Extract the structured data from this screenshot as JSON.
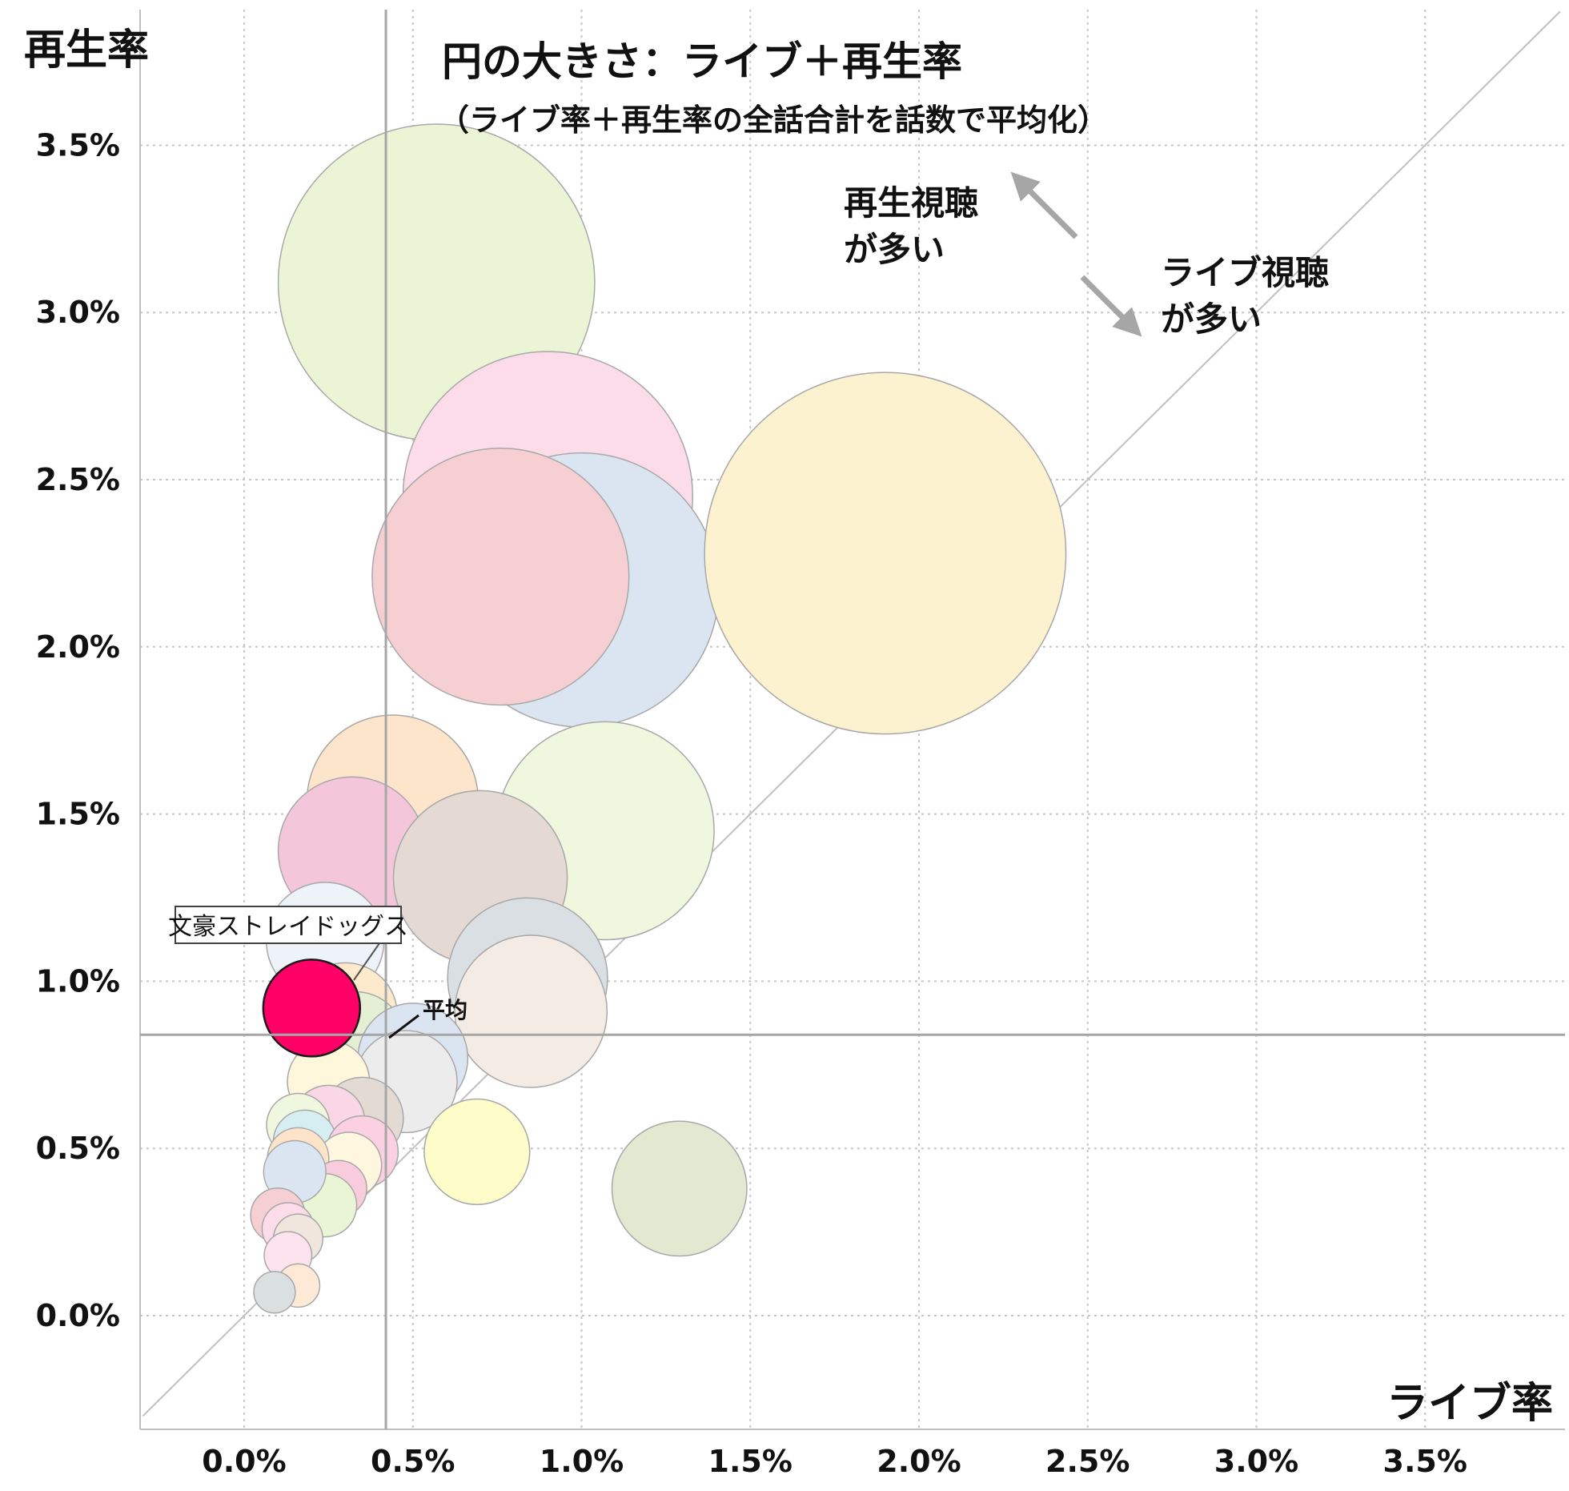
{
  "chart_data": {
    "type": "scatter",
    "title": "円の大きさ：ライブ＋再生率",
    "subtitle": "（ライブ率＋再生率の全話合計を話数で平均化）",
    "xlabel": "ライブ率",
    "ylabel": "再生率",
    "xlim": [
      -0.3,
      3.9
    ],
    "ylim": [
      -0.35,
      3.9
    ],
    "x_ticks": [
      0.0,
      0.5,
      1.0,
      1.5,
      2.0,
      2.5,
      3.0,
      3.5
    ],
    "y_ticks": [
      0.0,
      0.5,
      1.0,
      1.5,
      2.0,
      2.5,
      3.0,
      3.5
    ],
    "x_tick_labels": [
      "0.0%",
      "0.5%",
      "1.0%",
      "1.5%",
      "2.0%",
      "2.5%",
      "3.0%",
      "3.5%"
    ],
    "y_tick_labels": [
      "0.0%",
      "0.5%",
      "1.0%",
      "1.5%",
      "2.0%",
      "2.5%",
      "3.0%",
      "3.5%"
    ],
    "grid": true,
    "average": {
      "x": 0.42,
      "y": 0.84,
      "label": "平均"
    },
    "reference_line": "y = x",
    "annotations": {
      "upper": [
        "再生視聴",
        "が多い"
      ],
      "lower": [
        "ライブ視聴",
        "が多い"
      ]
    },
    "highlight": {
      "label": "文豪ストレイドッグス",
      "x": 0.2,
      "y": 0.92,
      "size": 1.12,
      "color": "#ff0066"
    },
    "points": [
      {
        "x": 0.57,
        "y": 3.09,
        "size": 3.66,
        "color": "#ebf5d5"
      },
      {
        "x": 0.9,
        "y": 2.45,
        "size": 3.35,
        "color": "#fcdce8"
      },
      {
        "x": 1.0,
        "y": 2.17,
        "size": 3.17,
        "color": "#dbe5f1"
      },
      {
        "x": 0.76,
        "y": 2.21,
        "size": 2.97,
        "color": "#f6cfd3"
      },
      {
        "x": 1.9,
        "y": 2.28,
        "size": 4.18,
        "color": "#fcf2cf"
      },
      {
        "x": 0.44,
        "y": 1.54,
        "size": 1.98,
        "color": "#fde5cb"
      },
      {
        "x": 1.07,
        "y": 1.45,
        "size": 2.52,
        "color": "#eff7df"
      },
      {
        "x": 0.32,
        "y": 1.39,
        "size": 1.71,
        "color": "#f4c6da"
      },
      {
        "x": 0.7,
        "y": 1.31,
        "size": 2.01,
        "color": "#e4d9d3"
      },
      {
        "x": 0.84,
        "y": 1.01,
        "size": 1.85,
        "color": "#d9dfe3"
      },
      {
        "x": 0.85,
        "y": 0.91,
        "size": 1.76,
        "color": "#f4ebe4"
      },
      {
        "x": 0.24,
        "y": 1.12,
        "size": 1.36,
        "color": "#eef2f9"
      },
      {
        "x": 0.3,
        "y": 0.9,
        "size": 1.2,
        "color": "#fde9cb"
      },
      {
        "x": 0.33,
        "y": 0.82,
        "size": 1.15,
        "color": "#e5efd3"
      },
      {
        "x": 0.5,
        "y": 0.77,
        "size": 1.27,
        "color": "#dbe5f1"
      },
      {
        "x": 0.48,
        "y": 0.7,
        "size": 1.18,
        "color": "#ececec"
      },
      {
        "x": 0.25,
        "y": 0.7,
        "size": 0.95,
        "color": "#fff7db"
      },
      {
        "x": 0.35,
        "y": 0.59,
        "size": 0.95,
        "color": "#e4dad4"
      },
      {
        "x": 0.25,
        "y": 0.58,
        "size": 0.84,
        "color": "#f9d7e4"
      },
      {
        "x": 0.16,
        "y": 0.57,
        "size": 0.73,
        "color": "#eff7df"
      },
      {
        "x": 0.18,
        "y": 0.52,
        "size": 0.73,
        "color": "#d6eef2"
      },
      {
        "x": 0.35,
        "y": 0.49,
        "size": 0.83,
        "color": "#fbd0e0"
      },
      {
        "x": 0.31,
        "y": 0.45,
        "size": 0.76,
        "color": "#fff6e0"
      },
      {
        "x": 0.16,
        "y": 0.47,
        "size": 0.71,
        "color": "#fde3c7"
      },
      {
        "x": 0.28,
        "y": 0.38,
        "size": 0.65,
        "color": "#f8ccdc"
      },
      {
        "x": 0.24,
        "y": 0.33,
        "size": 0.73,
        "color": "#eaf5d6"
      },
      {
        "x": 0.15,
        "y": 0.43,
        "size": 0.72,
        "color": "#dbe5f1"
      },
      {
        "x": 0.69,
        "y": 0.49,
        "size": 1.22,
        "color": "#fefdc9"
      },
      {
        "x": 1.29,
        "y": 0.38,
        "size": 1.56,
        "color": "#e3e8d1"
      },
      {
        "x": 0.1,
        "y": 0.3,
        "size": 0.63,
        "color": "#f6cfd3"
      },
      {
        "x": 0.13,
        "y": 0.26,
        "size": 0.6,
        "color": "#fcdce8"
      },
      {
        "x": 0.16,
        "y": 0.23,
        "size": 0.57,
        "color": "#f0e6de"
      },
      {
        "x": 0.13,
        "y": 0.18,
        "size": 0.55,
        "color": "#fde3ee"
      },
      {
        "x": 0.16,
        "y": 0.09,
        "size": 0.5,
        "color": "#fde9d6"
      },
      {
        "x": 0.09,
        "y": 0.07,
        "size": 0.48,
        "color": "#d9e0df"
      }
    ]
  }
}
